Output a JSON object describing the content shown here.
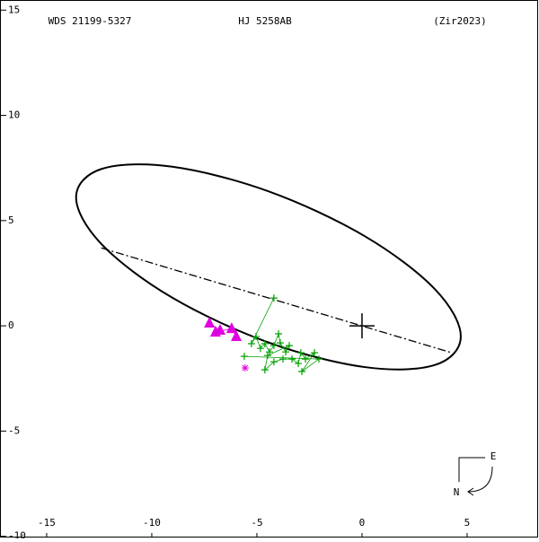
{
  "chart_data": {
    "type": "orbit",
    "title": "WDS 21199-5327",
    "subtitle": "HJ 5258AB",
    "source": "(Zir2023)",
    "xlim": [
      -17.22,
      8.42
    ],
    "ylim": [
      -10.1,
      15.48
    ],
    "xticks": [
      -15,
      -10,
      -5,
      0,
      5
    ],
    "yticks": [
      15,
      10,
      5,
      0,
      -5,
      -10
    ],
    "orbit": {
      "color": "#000000",
      "x": [
        4.7,
        3.47,
        0.13,
        -4.45,
        -9.03,
        -12.37,
        -13.6,
        -12.37,
        -9.03,
        -4.45,
        0.13,
        3.47
      ],
      "y": [
        -0.5,
        1.74,
        4.26,
        6.39,
        7.56,
        7.46,
        6.1,
        3.86,
        1.34,
        -0.79,
        -1.96,
        -1.86
      ]
    },
    "line_of_nodes": {
      "color": "#000000",
      "x": [
        -12.4,
        4.27
      ],
      "y": [
        3.7,
        -1.28
      ]
    },
    "observations": [
      {
        "marker": "plus",
        "color": "#00a000",
        "x": [
          -4.19,
          -5.26,
          -5.04,
          -4.83,
          -4.62,
          -4.4,
          -4.19,
          -3.97,
          -3.89,
          -3.63,
          -3.46,
          -4.49,
          -4.62,
          -4.19,
          -3.76,
          -3.33,
          -3.03,
          -2.91,
          -2.69,
          -2.26,
          -2.86,
          -2.05,
          -5.6
        ],
        "y": [
          1.32,
          -0.85,
          -0.51,
          -1.07,
          -0.85,
          -1.24,
          -0.94,
          -0.38,
          -0.81,
          -1.24,
          -0.94,
          -1.41,
          -2.09,
          -1.71,
          -1.58,
          -1.58,
          -1.79,
          -1.28,
          -1.58,
          -1.28,
          -2.17,
          -1.58,
          -1.45
        ]
      },
      {
        "marker": "triangle",
        "color": "#e000e0",
        "x": [
          -7.26,
          -6.75,
          -6.97,
          -6.2,
          -5.98
        ],
        "y": [
          0.13,
          -0.21,
          -0.3,
          -0.13,
          -0.51
        ]
      },
      {
        "marker": "asterisk",
        "color": "#e000e0",
        "x": [
          -5.56
        ],
        "y": [
          -2.0
        ]
      }
    ],
    "compass": {
      "east": "E",
      "north": "N"
    }
  }
}
